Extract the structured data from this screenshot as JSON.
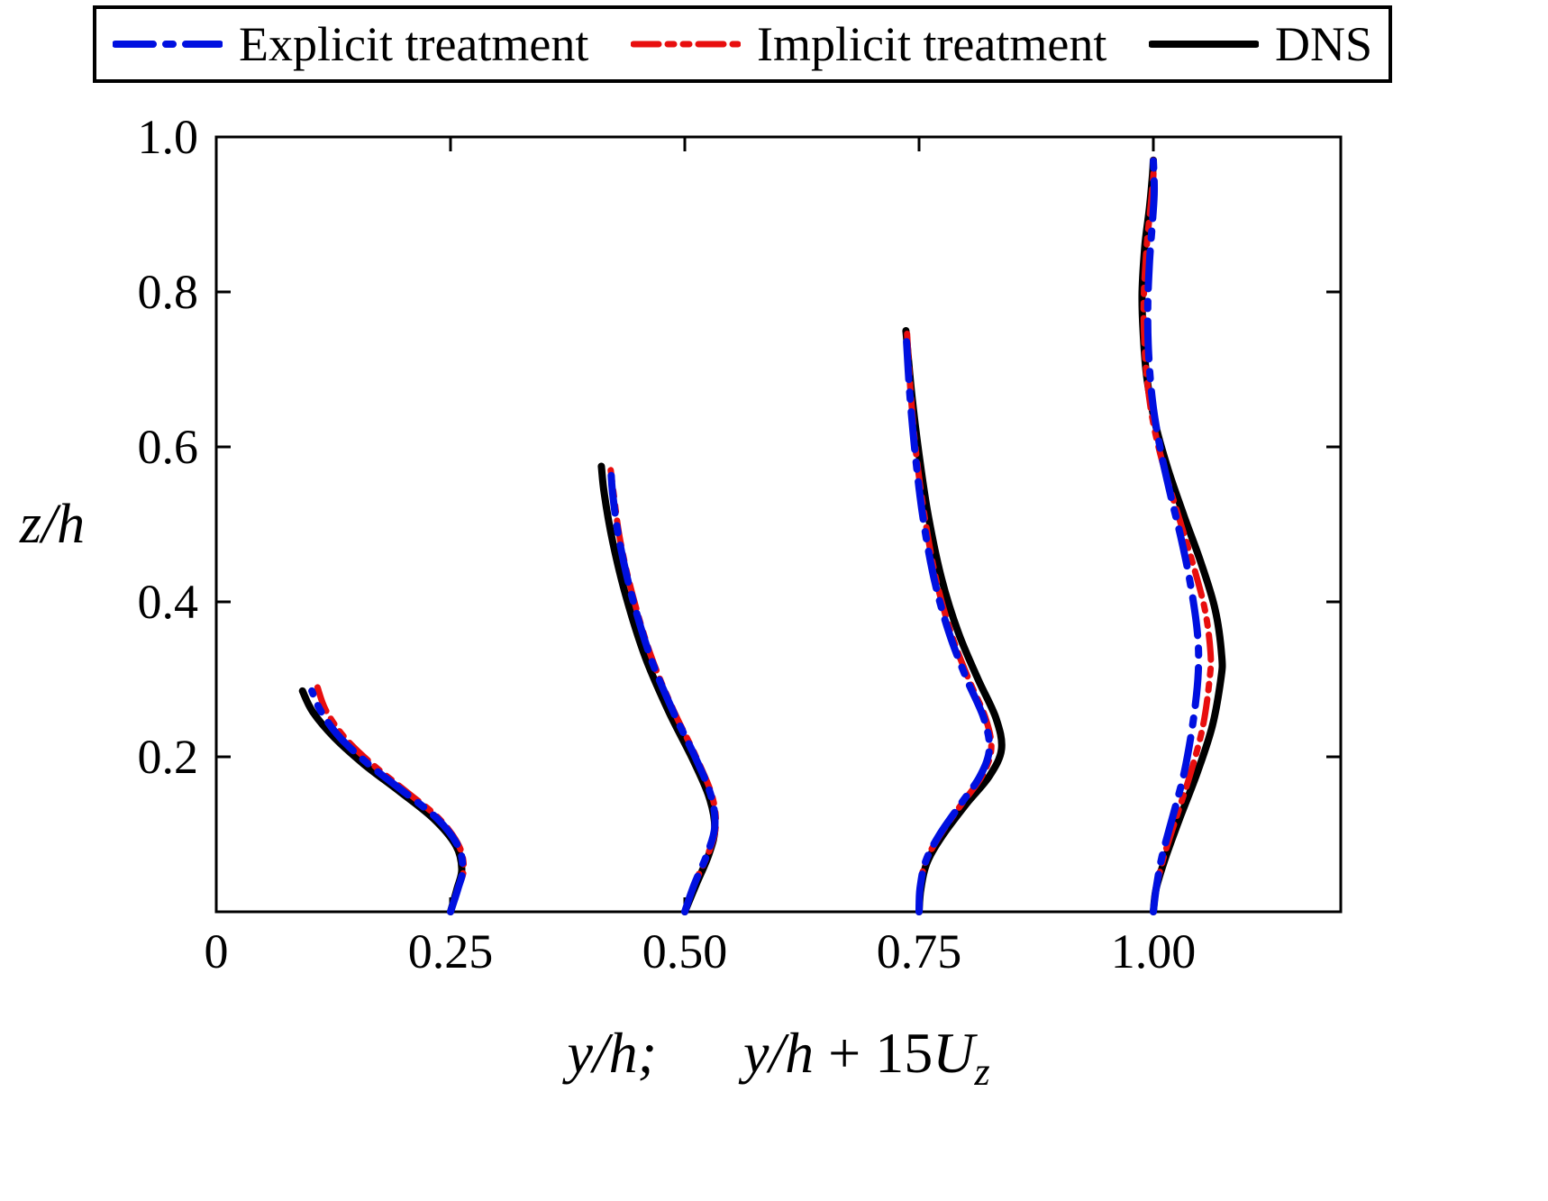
{
  "chart_data": {
    "type": "line",
    "title": "",
    "xlabel_parts": {
      "a": "y/h;",
      "b": "y/h",
      "c": " + 15",
      "d": "U",
      "sub": "z"
    },
    "ylabel": "z/h",
    "xlim": [
      0,
      1.2
    ],
    "ylim": [
      0,
      1.0
    ],
    "grid": false,
    "legend_position": "top",
    "profile_locations": [
      0.25,
      0.5,
      0.75,
      1.0
    ],
    "x_ticks": [
      {
        "v": 0,
        "label": "0"
      },
      {
        "v": 0.25,
        "label": "0.25"
      },
      {
        "v": 0.5,
        "label": "0.50"
      },
      {
        "v": 0.75,
        "label": "0.75"
      },
      {
        "v": 1.0,
        "label": "1.00"
      }
    ],
    "y_ticks": [
      {
        "v": 0.2,
        "label": "0.2"
      },
      {
        "v": 0.4,
        "label": "0.4"
      },
      {
        "v": 0.6,
        "label": "0.6"
      },
      {
        "v": 0.8,
        "label": "0.8"
      },
      {
        "v": 1.0,
        "label": "1.0"
      }
    ],
    "series": [
      {
        "name": "Explicit treatment",
        "color": "#0010e0",
        "dash": "42 14 8 14",
        "width": 8,
        "profiles": [
          [
            [
              0.25,
              0
            ],
            [
              0.258,
              0.03
            ],
            [
              0.263,
              0.055
            ],
            [
              0.258,
              0.085
            ],
            [
              0.236,
              0.12
            ],
            [
              0.2,
              0.155
            ],
            [
              0.163,
              0.19
            ],
            [
              0.132,
              0.225
            ],
            [
              0.112,
              0.258
            ],
            [
              0.102,
              0.285
            ]
          ],
          [
            [
              0.5,
              0
            ],
            [
              0.51,
              0.035
            ],
            [
              0.524,
              0.075
            ],
            [
              0.532,
              0.11
            ],
            [
              0.528,
              0.15
            ],
            [
              0.511,
              0.2
            ],
            [
              0.487,
              0.26
            ],
            [
              0.463,
              0.33
            ],
            [
              0.443,
              0.41
            ],
            [
              0.43,
              0.48
            ],
            [
              0.423,
              0.54
            ],
            [
              0.421,
              0.575
            ]
          ],
          [
            [
              0.75,
              0
            ],
            [
              0.751,
              0.03
            ],
            [
              0.757,
              0.065
            ],
            [
              0.772,
              0.1
            ],
            [
              0.795,
              0.14
            ],
            [
              0.815,
              0.175
            ],
            [
              0.825,
              0.21
            ],
            [
              0.819,
              0.25
            ],
            [
              0.801,
              0.3
            ],
            [
              0.782,
              0.36
            ],
            [
              0.766,
              0.43
            ],
            [
              0.754,
              0.51
            ],
            [
              0.746,
              0.59
            ],
            [
              0.74,
              0.67
            ],
            [
              0.736,
              0.75
            ]
          ],
          [
            [
              1.0,
              0
            ],
            [
              1.003,
              0.03
            ],
            [
              1.009,
              0.07
            ],
            [
              1.02,
              0.12
            ],
            [
              1.033,
              0.18
            ],
            [
              1.043,
              0.25
            ],
            [
              1.048,
              0.31
            ],
            [
              1.047,
              0.36
            ],
            [
              1.04,
              0.42
            ],
            [
              1.03,
              0.48
            ],
            [
              1.018,
              0.54
            ],
            [
              1.007,
              0.6
            ],
            [
              0.999,
              0.66
            ],
            [
              0.995,
              0.72
            ],
            [
              0.994,
              0.78
            ],
            [
              0.996,
              0.84
            ],
            [
              0.999,
              0.89
            ],
            [
              1.001,
              0.93
            ],
            [
              1.0,
              0.97
            ]
          ]
        ]
      },
      {
        "name": "Implicit treatment",
        "color": "#e80e0e",
        "dash": "28 10 7 10 7 10",
        "width": 7,
        "profiles": [
          [
            [
              0.25,
              0
            ],
            [
              0.258,
              0.03
            ],
            [
              0.264,
              0.055
            ],
            [
              0.259,
              0.085
            ],
            [
              0.238,
              0.12
            ],
            [
              0.203,
              0.155
            ],
            [
              0.167,
              0.19
            ],
            [
              0.137,
              0.225
            ],
            [
              0.117,
              0.26
            ],
            [
              0.108,
              0.29
            ]
          ],
          [
            [
              0.5,
              0
            ],
            [
              0.51,
              0.035
            ],
            [
              0.525,
              0.075
            ],
            [
              0.533,
              0.11
            ],
            [
              0.529,
              0.15
            ],
            [
              0.512,
              0.2
            ],
            [
              0.488,
              0.26
            ],
            [
              0.464,
              0.33
            ],
            [
              0.444,
              0.41
            ],
            [
              0.431,
              0.48
            ],
            [
              0.424,
              0.54
            ],
            [
              0.421,
              0.57
            ]
          ],
          [
            [
              0.75,
              0
            ],
            [
              0.751,
              0.03
            ],
            [
              0.757,
              0.065
            ],
            [
              0.773,
              0.1
            ],
            [
              0.796,
              0.14
            ],
            [
              0.817,
              0.175
            ],
            [
              0.827,
              0.21
            ],
            [
              0.821,
              0.25
            ],
            [
              0.803,
              0.3
            ],
            [
              0.784,
              0.36
            ],
            [
              0.768,
              0.43
            ],
            [
              0.756,
              0.51
            ],
            [
              0.747,
              0.59
            ],
            [
              0.741,
              0.67
            ],
            [
              0.737,
              0.75
            ]
          ],
          [
            [
              1.0,
              0
            ],
            [
              1.003,
              0.03
            ],
            [
              1.011,
              0.07
            ],
            [
              1.024,
              0.12
            ],
            [
              1.04,
              0.18
            ],
            [
              1.053,
              0.24
            ],
            [
              1.06,
              0.3
            ],
            [
              1.061,
              0.335
            ],
            [
              1.055,
              0.39
            ],
            [
              1.042,
              0.45
            ],
            [
              1.027,
              0.51
            ],
            [
              1.012,
              0.57
            ],
            [
              1.0,
              0.63
            ],
            [
              0.993,
              0.69
            ],
            [
              0.99,
              0.75
            ],
            [
              0.99,
              0.8
            ],
            [
              0.993,
              0.86
            ],
            [
              0.997,
              0.91
            ],
            [
              1.0,
              0.95
            ],
            [
              1.0,
              0.97
            ]
          ]
        ]
      },
      {
        "name": "DNS",
        "color": "#000000",
        "dash": "none",
        "width": 8,
        "profiles": [
          [
            [
              0.25,
              0
            ],
            [
              0.257,
              0.03
            ],
            [
              0.262,
              0.055
            ],
            [
              0.256,
              0.085
            ],
            [
              0.232,
              0.12
            ],
            [
              0.196,
              0.155
            ],
            [
              0.158,
              0.19
            ],
            [
              0.126,
              0.225
            ],
            [
              0.103,
              0.258
            ],
            [
              0.092,
              0.285
            ]
          ],
          [
            [
              0.5,
              0
            ],
            [
              0.512,
              0.035
            ],
            [
              0.526,
              0.075
            ],
            [
              0.532,
              0.108
            ],
            [
              0.526,
              0.148
            ],
            [
              0.508,
              0.198
            ],
            [
              0.483,
              0.258
            ],
            [
              0.458,
              0.328
            ],
            [
              0.437,
              0.408
            ],
            [
              0.423,
              0.478
            ],
            [
              0.414,
              0.54
            ],
            [
              0.411,
              0.575
            ]
          ],
          [
            [
              0.75,
              0
            ],
            [
              0.752,
              0.03
            ],
            [
              0.759,
              0.065
            ],
            [
              0.776,
              0.1
            ],
            [
              0.801,
              0.14
            ],
            [
              0.825,
              0.175
            ],
            [
              0.838,
              0.21
            ],
            [
              0.832,
              0.25
            ],
            [
              0.813,
              0.3
            ],
            [
              0.792,
              0.36
            ],
            [
              0.774,
              0.43
            ],
            [
              0.76,
              0.51
            ],
            [
              0.75,
              0.59
            ],
            [
              0.742,
              0.67
            ],
            [
              0.736,
              0.75
            ]
          ],
          [
            [
              1.0,
              0
            ],
            [
              1.003,
              0.03
            ],
            [
              1.013,
              0.07
            ],
            [
              1.028,
              0.12
            ],
            [
              1.047,
              0.18
            ],
            [
              1.063,
              0.24
            ],
            [
              1.072,
              0.3
            ],
            [
              1.073,
              0.33
            ],
            [
              1.066,
              0.39
            ],
            [
              1.051,
              0.45
            ],
            [
              1.033,
              0.51
            ],
            [
              1.016,
              0.57
            ],
            [
              1.002,
              0.63
            ],
            [
              0.993,
              0.69
            ],
            [
              0.989,
              0.75
            ],
            [
              0.988,
              0.8
            ],
            [
              0.991,
              0.86
            ],
            [
              0.996,
              0.91
            ],
            [
              0.999,
              0.95
            ],
            [
              1.0,
              0.97
            ]
          ]
        ]
      }
    ]
  }
}
